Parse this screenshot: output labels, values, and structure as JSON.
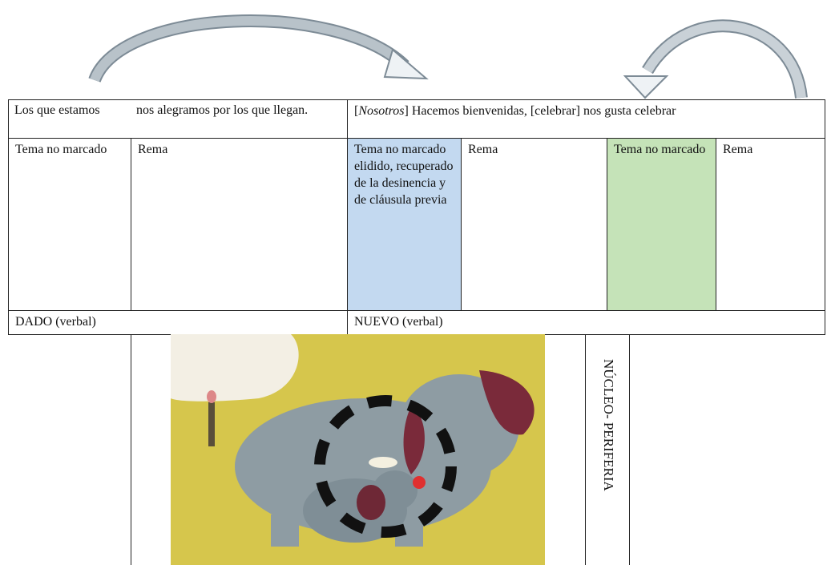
{
  "table": {
    "header": {
      "left": [
        "Los que estamos",
        "nos alegramos por los que llegan."
      ],
      "right": {
        "prefix": "[",
        "italic": "Nosotros",
        "suffix": "] Hacemos bienvenidas, [celebrar]   nos gusta celebrar"
      }
    },
    "roles": [
      "Tema no marcado",
      "Rema",
      "Tema no marcado elidido, recuperado de la desinencia y de cláusula previa",
      "Rema",
      "Tema no marcado",
      "Rema"
    ],
    "footer": [
      "DADO (verbal)",
      "NUEVO (verbal)"
    ]
  },
  "side_label": "NÚCLEO- PERIFERIA"
}
